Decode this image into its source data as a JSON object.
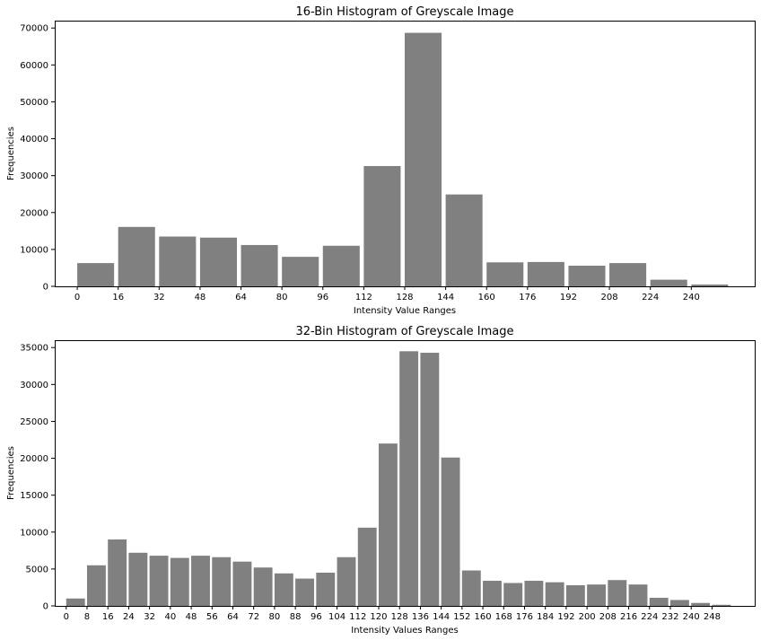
{
  "chart_data": [
    {
      "type": "bar",
      "title": "16-Bin Histogram of Greyscale Image",
      "xlabel": "Intensity Value Ranges",
      "ylabel": "Frequencies",
      "bar_color": "#808080",
      "xlim": [
        -8.8,
        264.8
      ],
      "ylim": [
        0,
        72000
      ],
      "bin_width": 16,
      "x_ticks": [
        0,
        16,
        32,
        48,
        64,
        80,
        96,
        112,
        128,
        144,
        160,
        176,
        192,
        208,
        224,
        240
      ],
      "y_ticks": [
        0,
        10000,
        20000,
        30000,
        40000,
        50000,
        60000,
        70000
      ],
      "categories": [
        "0",
        "16",
        "32",
        "48",
        "64",
        "80",
        "96",
        "112",
        "128",
        "144",
        "160",
        "176",
        "192",
        "208",
        "224",
        "240"
      ],
      "values": [
        6300,
        16100,
        13500,
        13200,
        11200,
        8000,
        11000,
        32600,
        68700,
        24900,
        6500,
        6600,
        5600,
        6300,
        1800,
        500
      ]
    },
    {
      "type": "bar",
      "title": "32-Bin Histogram of Greyscale Image",
      "xlabel": "Intensity Values Ranges",
      "ylabel": "Frequencies",
      "bar_color": "#808080",
      "xlim": [
        -4.4,
        264.4
      ],
      "ylim": [
        0,
        36000
      ],
      "bin_width": 8,
      "x_ticks": [
        0,
        8,
        16,
        24,
        32,
        40,
        48,
        56,
        64,
        72,
        80,
        88,
        96,
        104,
        112,
        120,
        128,
        136,
        144,
        152,
        160,
        168,
        176,
        184,
        192,
        200,
        208,
        216,
        224,
        232,
        240,
        248
      ],
      "y_ticks": [
        0,
        5000,
        10000,
        15000,
        20000,
        25000,
        30000,
        35000
      ],
      "categories": [
        "0",
        "8",
        "16",
        "24",
        "32",
        "40",
        "48",
        "56",
        "64",
        "72",
        "80",
        "88",
        "96",
        "104",
        "112",
        "120",
        "128",
        "136",
        "144",
        "152",
        "160",
        "168",
        "176",
        "184",
        "192",
        "200",
        "208",
        "216",
        "224",
        "232",
        "240",
        "248"
      ],
      "values": [
        1000,
        5500,
        9000,
        7200,
        6800,
        6500,
        6800,
        6600,
        6000,
        5200,
        4400,
        3700,
        4500,
        6600,
        10600,
        22000,
        34500,
        34300,
        20100,
        4800,
        3400,
        3100,
        3400,
        3200,
        2800,
        2900,
        3500,
        2900,
        1100,
        800,
        400,
        150
      ]
    }
  ]
}
